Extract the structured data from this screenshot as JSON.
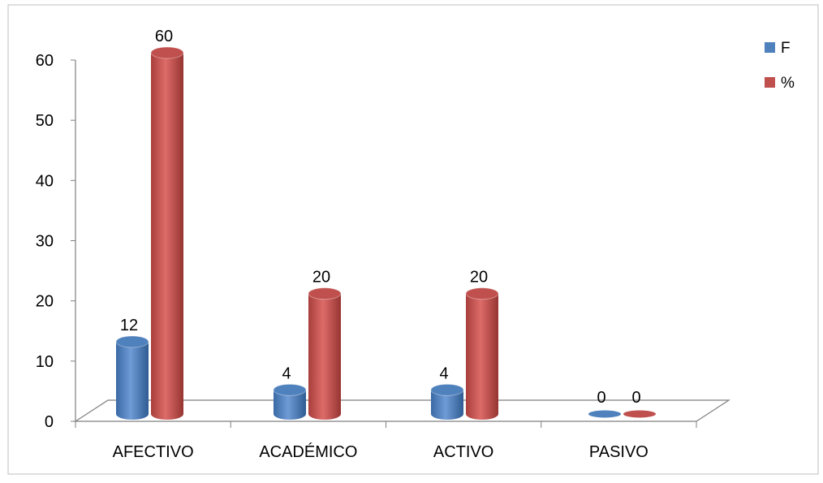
{
  "chart_data": {
    "type": "bar",
    "title": "",
    "xlabel": "",
    "ylabel": "",
    "categories": [
      "AFECTIVO",
      "ACADÉMICO",
      "ACTIVO",
      "PASIVO"
    ],
    "series": [
      {
        "name": "F",
        "values": [
          12,
          4,
          4,
          0
        ],
        "labels": [
          "12",
          "4",
          "4",
          "0"
        ],
        "color": "#4F81BD"
      },
      {
        "name": "%",
        "values": [
          60,
          20,
          20,
          0
        ],
        "labels": [
          "60",
          "20",
          "20",
          "0"
        ],
        "color": "#C0504D"
      }
    ],
    "ylim": [
      0,
      60
    ],
    "yticks": [
      "0",
      "10",
      "20",
      "30",
      "40",
      "50",
      "60"
    ],
    "legend_position": "top-right",
    "grid": false,
    "style": "3d-cylinder"
  }
}
